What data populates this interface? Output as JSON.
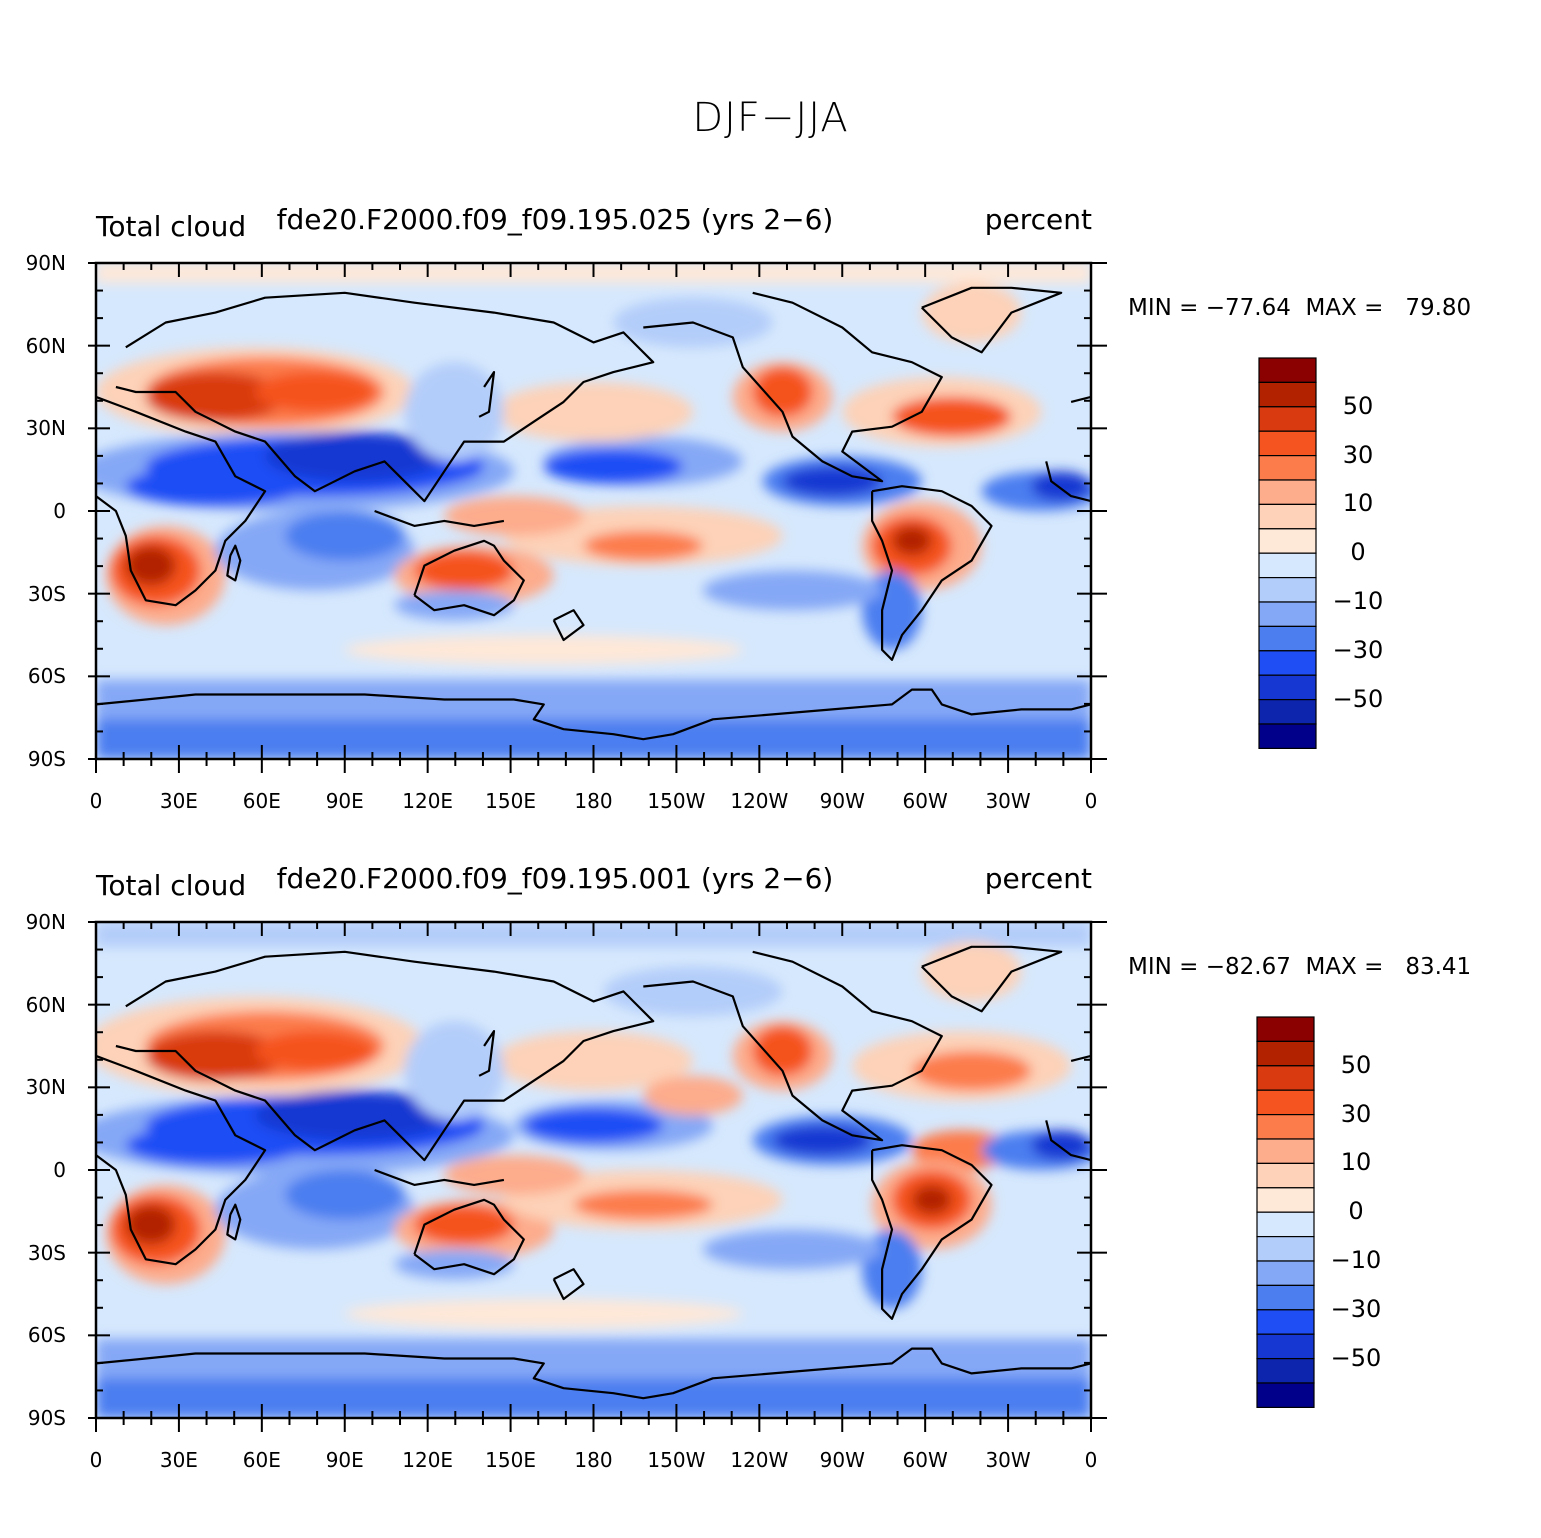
{
  "title": "DJF−JJA",
  "panels": [
    {
      "left_label": "Total cloud",
      "center_label": "fde20.F2000.f09_f09.195.025 (yrs 2−6)",
      "right_label": "percent",
      "minmax": "MIN = −77.64  MAX =   79.80"
    },
    {
      "left_label": "Total cloud",
      "center_label": "fde20.F2000.f09_f09.195.001 (yrs 2−6)",
      "right_label": "percent",
      "minmax": "MIN = −82.67  MAX =   83.41"
    }
  ],
  "axes": {
    "y_ticks": [
      "90N",
      "60N",
      "30N",
      "0",
      "30S",
      "60S",
      "90S"
    ],
    "x_ticks": [
      "0",
      "30E",
      "60E",
      "90E",
      "120E",
      "150E",
      "180",
      "150W",
      "120W",
      "90W",
      "60W",
      "30W",
      "0"
    ]
  },
  "colorbar": {
    "colors": [
      "#8b0000",
      "#b22200",
      "#d93a10",
      "#f5531f",
      "#fc7c4c",
      "#fdac8c",
      "#fdd2b8",
      "#fee8d8",
      "#d6e8fd",
      "#b3cdfa",
      "#85a8f6",
      "#4c7ef0",
      "#1f4ef5",
      "#1637d2",
      "#0d24ad",
      "#00008b"
    ],
    "labels": [
      "50",
      "30",
      "10",
      "0",
      "−10",
      "−30",
      "−50"
    ]
  },
  "chart_data": [
    {
      "type": "heatmap",
      "title": "DJF−JJA",
      "subtitle": "fde20.F2000.f09_f09.195.025 (yrs 2−6)",
      "variable": "Total cloud",
      "units": "percent",
      "min": -77.64,
      "max": 79.8,
      "contour_levels": [
        -70,
        -60,
        -50,
        -40,
        -30,
        -20,
        -10,
        -5,
        0,
        5,
        10,
        20,
        30,
        40,
        50,
        60,
        70
      ],
      "xlim": [
        0,
        360
      ],
      "ylim": [
        -90,
        90
      ]
    },
    {
      "type": "heatmap",
      "title": "DJF−JJA",
      "subtitle": "fde20.F2000.f09_f09.195.001 (yrs 2−6)",
      "variable": "Total cloud",
      "units": "percent",
      "min": -82.67,
      "max": 83.41,
      "contour_levels": [
        -70,
        -60,
        -50,
        -40,
        -30,
        -20,
        -10,
        -5,
        0,
        5,
        10,
        20,
        30,
        40,
        50,
        60,
        70
      ],
      "xlim": [
        0,
        360
      ],
      "ylim": [
        -90,
        90
      ]
    }
  ]
}
